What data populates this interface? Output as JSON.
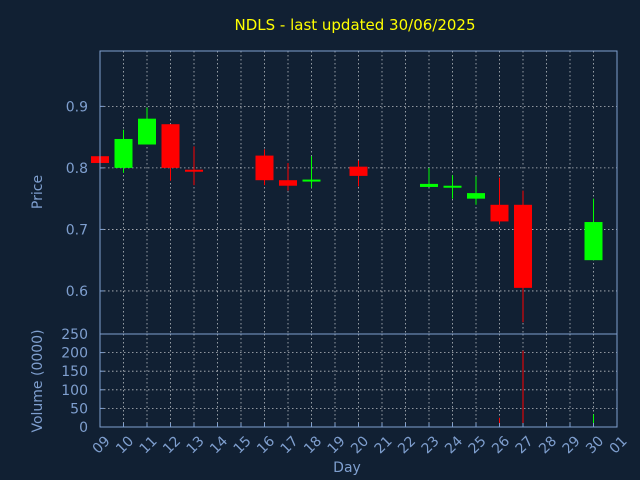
{
  "chart_data": {
    "type": "candlestick",
    "title": "NDLS - last updated 30/06/2025",
    "xlabel": "Day",
    "price_ylabel": "Price",
    "volume_ylabel": "Volume (0000)",
    "x_ticks": [
      "09",
      "10",
      "11",
      "12",
      "13",
      "14",
      "15",
      "16",
      "17",
      "18",
      "19",
      "20",
      "21",
      "22",
      "23",
      "24",
      "25",
      "26",
      "27",
      "28",
      "29",
      "30",
      "01"
    ],
    "price_ylim": [
      0.53,
      0.99
    ],
    "price_yticks": [
      "0.6",
      "0.7",
      "0.8",
      "0.9"
    ],
    "volume_ylim": [
      0,
      250
    ],
    "volume_yticks": [
      "0",
      "50",
      "100",
      "150",
      "200",
      "250"
    ],
    "grid": true,
    "colors": {
      "background": "#112033",
      "up": "#00ff00",
      "down": "#ff0000",
      "title": "#ffff00",
      "axis_text": "#7f9fcf",
      "grid": "#ffffff",
      "frame": "#7f9fcf"
    },
    "candles": [
      {
        "day": "09",
        "open": 0.819,
        "high": 0.819,
        "low": 0.808,
        "close": 0.808
      },
      {
        "day": "10",
        "open": 0.8,
        "high": 0.862,
        "low": 0.792,
        "close": 0.847
      },
      {
        "day": "11",
        "open": 0.838,
        "high": 0.898,
        "low": 0.838,
        "close": 0.88
      },
      {
        "day": "12",
        "open": 0.871,
        "high": 0.871,
        "low": 0.779,
        "close": 0.8
      },
      {
        "day": "13",
        "open": 0.797,
        "high": 0.835,
        "low": 0.772,
        "close": 0.794
      },
      {
        "day": "16",
        "open": 0.82,
        "high": 0.83,
        "low": 0.772,
        "close": 0.78
      },
      {
        "day": "17",
        "open": 0.78,
        "high": 0.808,
        "low": 0.763,
        "close": 0.771
      },
      {
        "day": "18",
        "open": 0.778,
        "high": 0.819,
        "low": 0.768,
        "close": 0.781
      },
      {
        "day": "20",
        "open": 0.802,
        "high": 0.812,
        "low": 0.77,
        "close": 0.787
      },
      {
        "day": "23",
        "open": 0.769,
        "high": 0.8,
        "low": 0.769,
        "close": 0.774
      },
      {
        "day": "24",
        "open": 0.768,
        "high": 0.788,
        "low": 0.75,
        "close": 0.771
      },
      {
        "day": "25",
        "open": 0.75,
        "high": 0.786,
        "low": 0.74,
        "close": 0.759
      },
      {
        "day": "26",
        "open": 0.74,
        "high": 0.784,
        "low": 0.708,
        "close": 0.713
      },
      {
        "day": "27",
        "open": 0.74,
        "high": 0.763,
        "low": 0.549,
        "close": 0.605
      },
      {
        "day": "30",
        "open": 0.65,
        "high": 0.75,
        "low": 0.65,
        "close": 0.712
      }
    ],
    "volumes": [
      {
        "day": "11",
        "value": 3
      },
      {
        "day": "12",
        "value": 6
      },
      {
        "day": "13",
        "value": 4
      },
      {
        "day": "16",
        "value": 3
      },
      {
        "day": "20",
        "value": 8
      },
      {
        "day": "26",
        "value": 25
      },
      {
        "day": "27",
        "value": 205
      },
      {
        "day": "30",
        "value": 34
      }
    ]
  }
}
